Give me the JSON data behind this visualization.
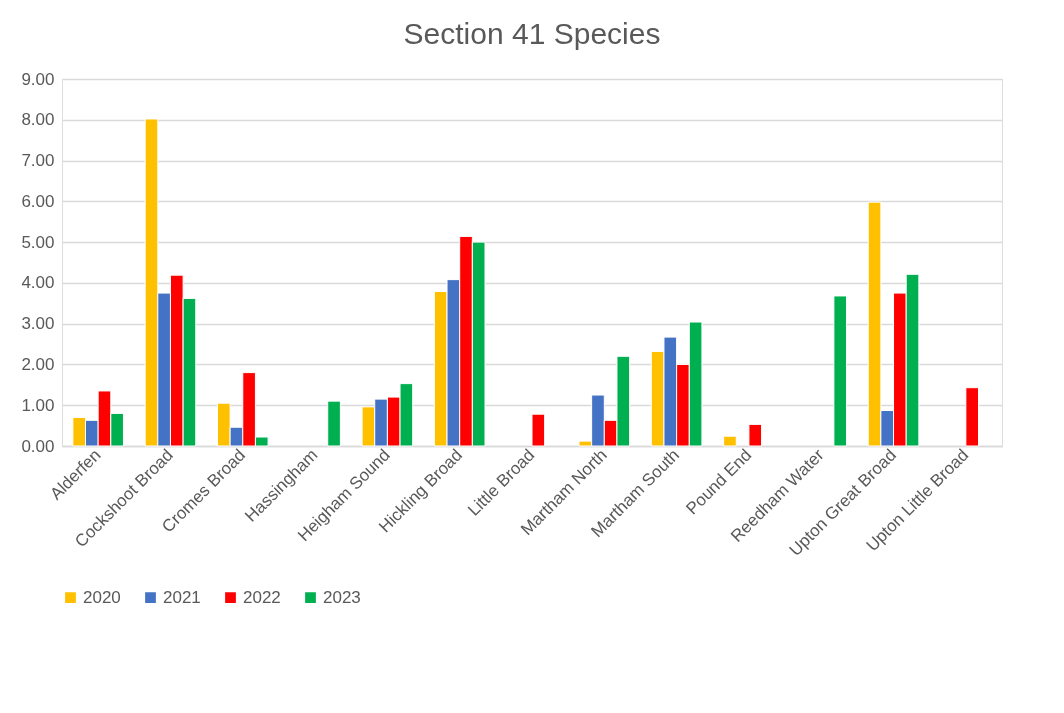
{
  "chart_data": {
    "type": "bar",
    "title": "Section 41 Species",
    "categories": [
      "Alderfen",
      "Cockshoot Broad",
      "Cromes Broad",
      "Hassingham",
      "Heigham Sound",
      "Hickling Broad",
      "Little Broad",
      "Martham North",
      "Martham South",
      "Pound End",
      "Reedham Water",
      "Upton Great Broad",
      "Upton Little Broad"
    ],
    "series": [
      {
        "name": "2020",
        "color": "#ffc000",
        "values": [
          0.7,
          8.02,
          1.05,
          null,
          0.96,
          3.79,
          null,
          0.12,
          2.32,
          0.24,
          null,
          5.98,
          null
        ]
      },
      {
        "name": "2021",
        "color": "#4472c4",
        "values": [
          0.63,
          3.75,
          0.46,
          null,
          1.15,
          4.08,
          null,
          1.25,
          2.67,
          null,
          null,
          0.87,
          null
        ]
      },
      {
        "name": "2022",
        "color": "#ff0000",
        "values": [
          1.35,
          4.19,
          1.8,
          null,
          1.2,
          5.14,
          0.78,
          0.63,
          2.0,
          0.53,
          null,
          3.75,
          1.43
        ]
      },
      {
        "name": "2023",
        "color": "#00b050",
        "values": [
          0.8,
          3.62,
          0.22,
          1.1,
          1.53,
          5.0,
          null,
          2.2,
          3.04,
          null,
          3.68,
          4.21,
          null
        ]
      }
    ],
    "ylim": [
      0,
      9
    ],
    "yticks": [
      {
        "value": 0,
        "label": "0.00"
      },
      {
        "value": 1,
        "label": "1.00"
      },
      {
        "value": 2,
        "label": "2.00"
      },
      {
        "value": 3,
        "label": "3.00"
      },
      {
        "value": 4,
        "label": "4.00"
      },
      {
        "value": 5,
        "label": "5.00"
      },
      {
        "value": 6,
        "label": "6.00"
      },
      {
        "value": 7,
        "label": "7.00"
      },
      {
        "value": 8,
        "label": "8.00"
      },
      {
        "value": 9,
        "label": "9.00"
      }
    ],
    "grid": "y",
    "legend": "bottom"
  }
}
